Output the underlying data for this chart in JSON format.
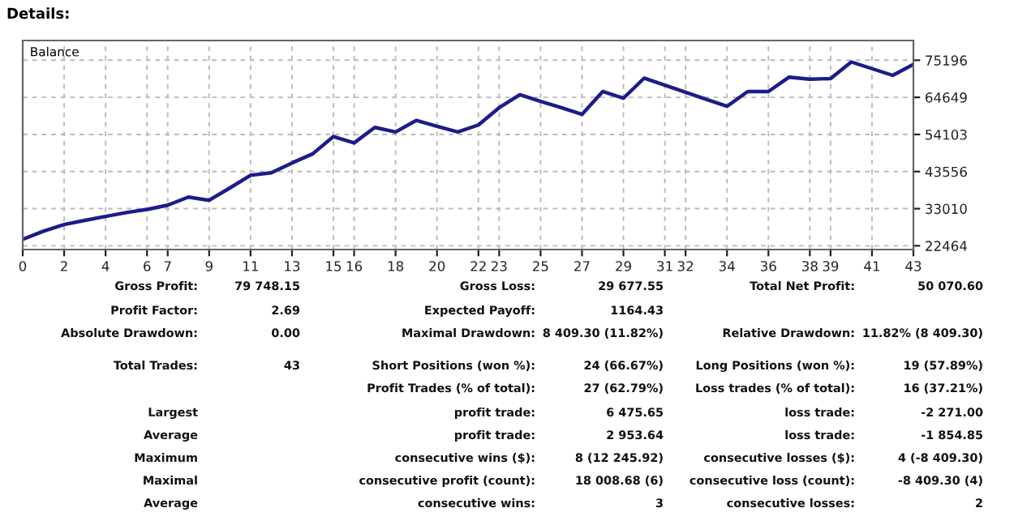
{
  "chart_data": {
    "type": "line",
    "title": "Details:",
    "x": [
      0,
      1,
      2,
      3,
      4,
      5,
      6,
      7,
      8,
      9,
      10,
      11,
      12,
      13,
      14,
      15,
      16,
      17,
      18,
      19,
      20,
      21,
      22,
      23,
      24,
      25,
      26,
      27,
      28,
      29,
      30,
      31,
      32,
      33,
      34,
      35,
      36,
      37,
      38,
      39,
      40,
      41,
      42,
      43
    ],
    "series": [
      {
        "color": "#1c1c8a",
        "values": [
          24300,
          26600,
          28500,
          29700,
          30800,
          31900,
          32800,
          34000,
          36300,
          35400,
          38900,
          42500,
          43200,
          46000,
          48600,
          53500,
          51700,
          56100,
          54800,
          58100,
          56400,
          54800,
          56800,
          61700,
          65400,
          63500,
          61700,
          59800,
          66300,
          64400,
          70100,
          68100,
          66100,
          64100,
          62100,
          66300,
          66300,
          70400,
          69800,
          70000,
          74700,
          72800,
          70900,
          74000
        ]
      }
    ],
    "xlim": [
      0,
      43
    ],
    "xticks": [
      0,
      2,
      4,
      6,
      7,
      9,
      11,
      13,
      15,
      16,
      18,
      20,
      22,
      23,
      25,
      27,
      29,
      31,
      32,
      34,
      36,
      38,
      39,
      41,
      43
    ],
    "ylim": [
      21400,
      80800
    ],
    "yticks": [
      22464,
      33010,
      43556,
      54103,
      64649,
      75196
    ],
    "grid": true,
    "line_style": "solid",
    "annotations": [
      "Balance",
      "Gross Profit:",
      "79 748.15",
      "Gross Loss:",
      "29 677.55",
      "Total Net Profit:",
      "50 070.60",
      "Profit Factor:",
      "2.69",
      "Expected Payoff:",
      "1164.43",
      "Absolute Drawdown:",
      "0.00",
      "Maximal Drawdown:",
      "8 409.30 (11.82%)",
      "Relative Drawdown:",
      "11.82% (8 409.30)",
      "Total Trades:",
      "43",
      "Short Positions (won %):",
      "24 (66.67%)",
      "Long Positions (won %):",
      "19 (57.89%)",
      "Profit Trades (% of total):",
      "27 (62.79%)",
      "Loss trades (% of total):",
      "16 (37.21%)",
      "Largest",
      "profit trade:",
      "6 475.65",
      "loss trade:",
      "-2 271.00",
      "Average",
      "profit trade:",
      "2 953.64",
      "loss trade:",
      "-1 854.85",
      "Maximum",
      "consecutive wins ($):",
      "8 (12 245.92)",
      "consecutive losses ($):",
      "4 (-8 409.30)",
      "Maximal",
      "consecutive profit (count):",
      "18 008.68 (6)",
      "consecutive loss (count):",
      "-8 409.30 (4)",
      "Average",
      "consecutive wins:",
      "3",
      "consecutive losses:",
      "2"
    ]
  }
}
